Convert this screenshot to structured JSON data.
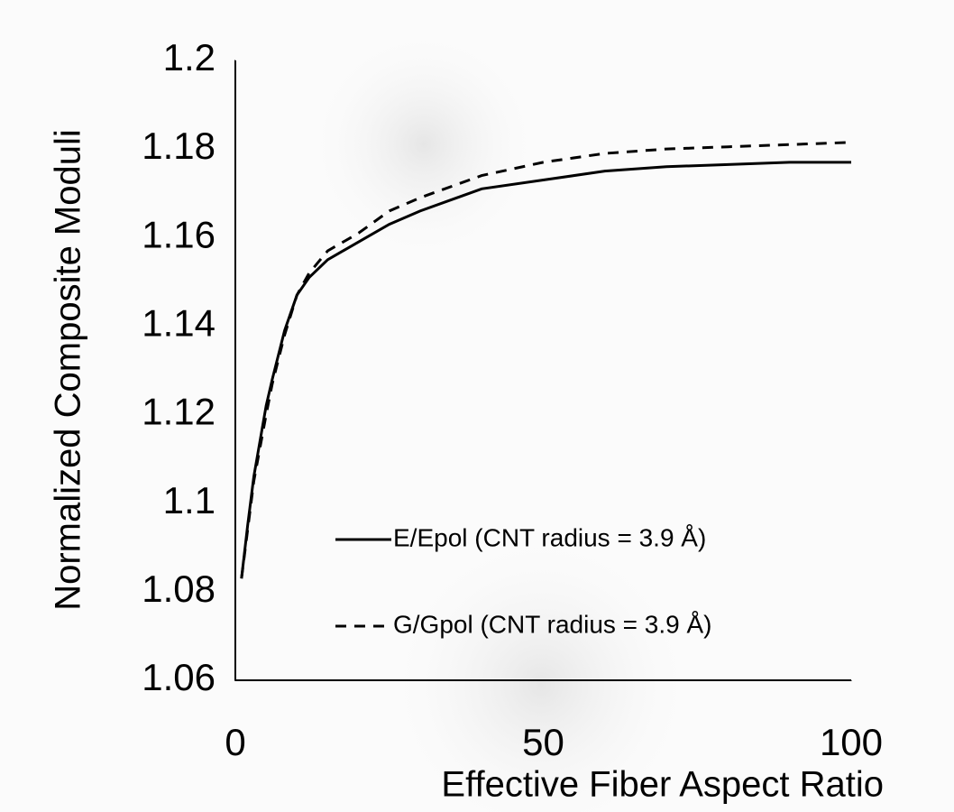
{
  "chart_data": {
    "type": "line",
    "xlabel": "Effective Fiber Aspect Ratio",
    "ylabel": "Normalized Composite Moduli",
    "x": [
      1,
      2,
      3,
      5,
      6,
      8,
      10,
      12,
      15,
      20,
      25,
      30,
      40,
      50,
      60,
      70,
      80,
      90,
      100
    ],
    "series": [
      {
        "name": "E/Epol (CNT radius = 3.9 Å)",
        "color": "#000000",
        "style": "solid",
        "values": [
          1.083,
          1.095,
          1.106,
          1.122,
          1.128,
          1.139,
          1.147,
          1.151,
          1.155,
          1.159,
          1.163,
          1.166,
          1.171,
          1.173,
          1.175,
          1.176,
          1.1765,
          1.177,
          1.177
        ]
      },
      {
        "name": "G/Gpol (CNT radius = 3.9 Å)",
        "color": "#000000",
        "style": "dashed",
        "values": [
          1.083,
          1.094,
          1.105,
          1.12,
          1.127,
          1.138,
          1.147,
          1.152,
          1.157,
          1.161,
          1.166,
          1.169,
          1.174,
          1.177,
          1.179,
          1.18,
          1.1805,
          1.181,
          1.1815
        ]
      }
    ],
    "xlim": [
      0,
      100
    ],
    "xticks": [
      0,
      50,
      100
    ],
    "ylim": [
      1.06,
      1.2
    ],
    "yticks": [
      1.06,
      1.08,
      1.1,
      1.12,
      1.14,
      1.16,
      1.18,
      1.2
    ],
    "grid": false,
    "legend": "lower right"
  }
}
